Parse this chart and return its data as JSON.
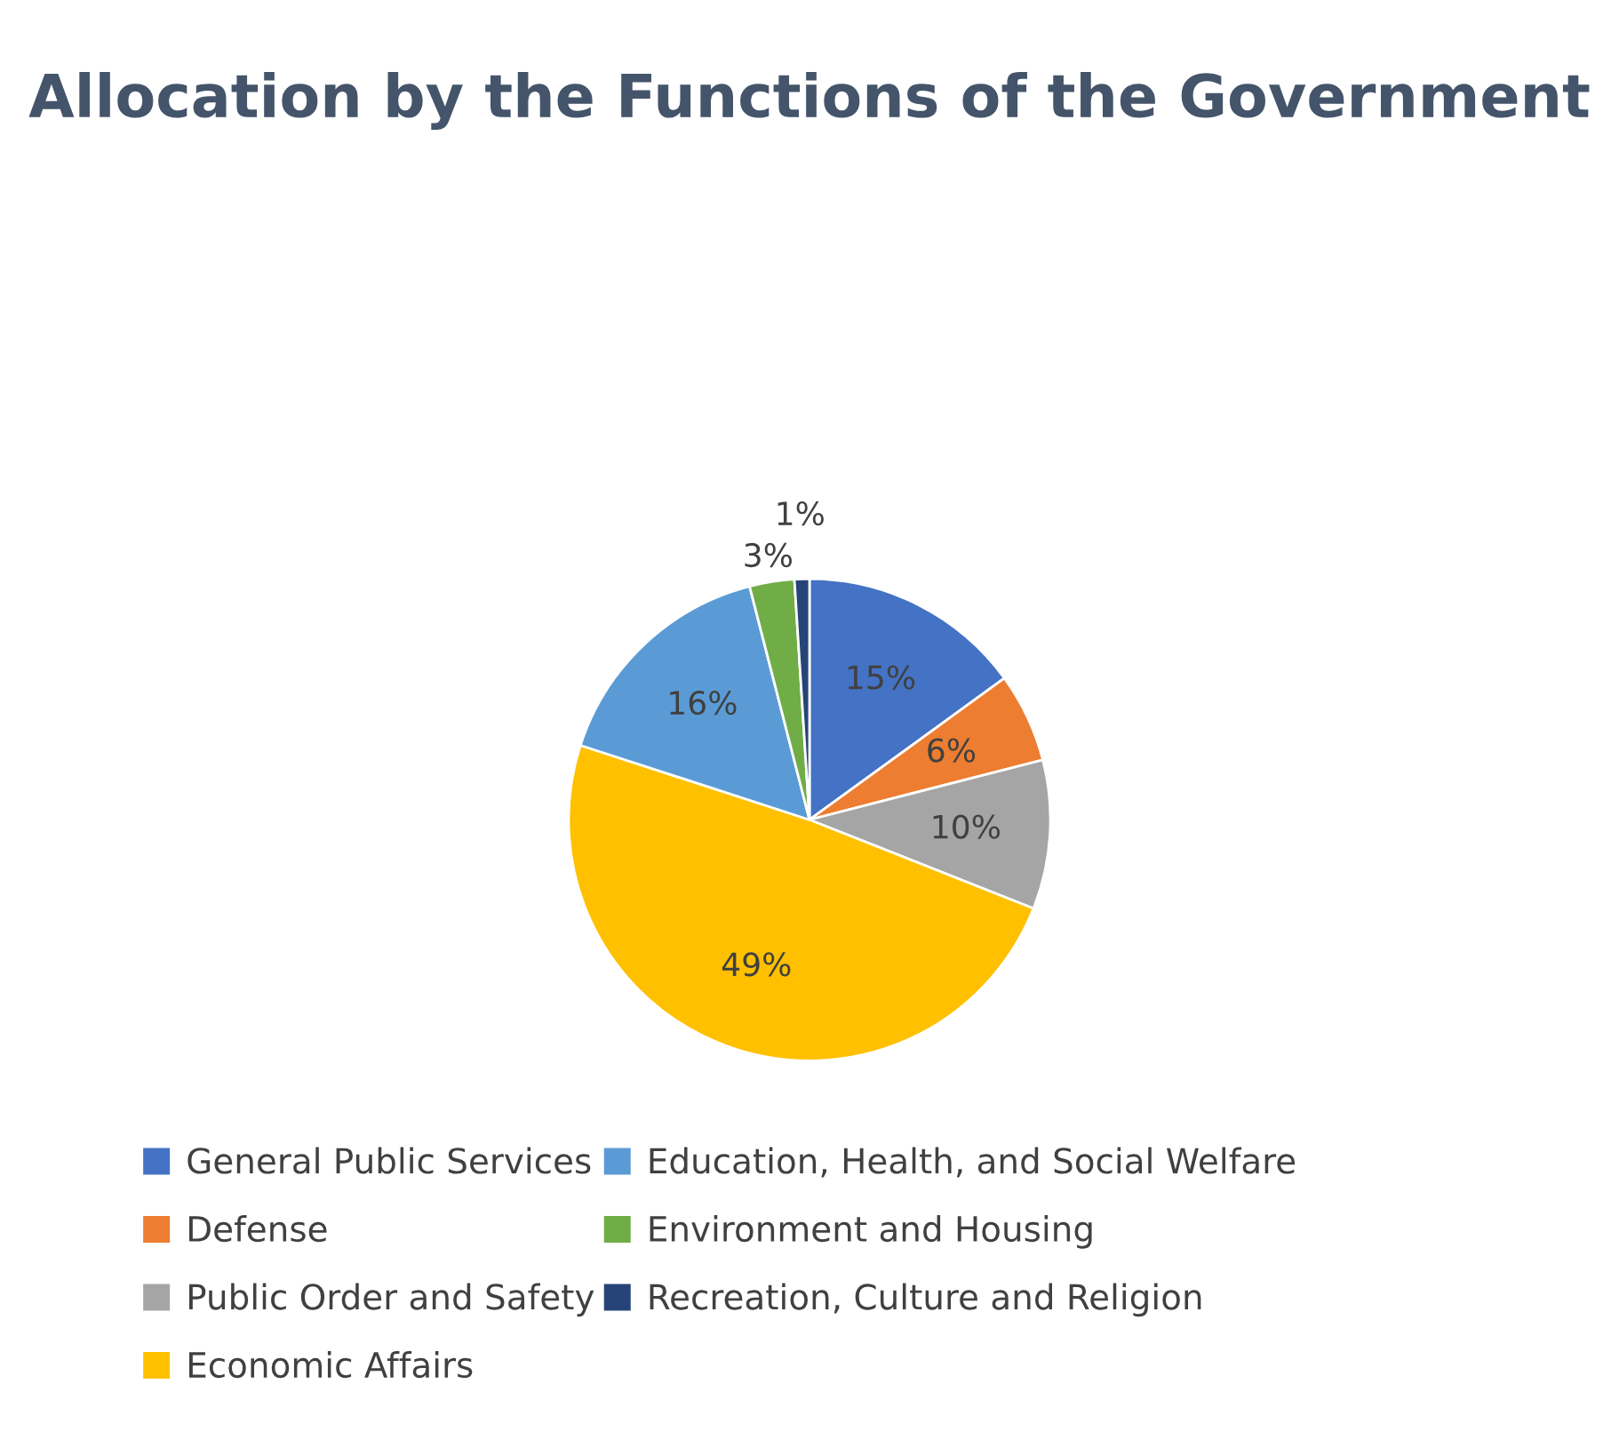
{
  "chart_data": {
    "type": "pie",
    "title": "Allocation by the Functions of the Government",
    "categories": [
      "General Public Services",
      "Defense",
      "Public Order and Safety",
      "Economic Affairs",
      "Education, Health, and Social Welfare",
      "Environment and Housing",
      "Recreation, Culture and Religion"
    ],
    "values": [
      15,
      6,
      10,
      49,
      16,
      3,
      1
    ],
    "colors": [
      "#4472c4",
      "#ed7d31",
      "#a5a5a5",
      "#ffc000",
      "#5b9bd5",
      "#70ad47",
      "#264478"
    ],
    "value_labels": [
      "15%",
      "6%",
      "10%",
      "49%",
      "16%",
      "3%",
      "1%"
    ],
    "legend": "bottom"
  }
}
